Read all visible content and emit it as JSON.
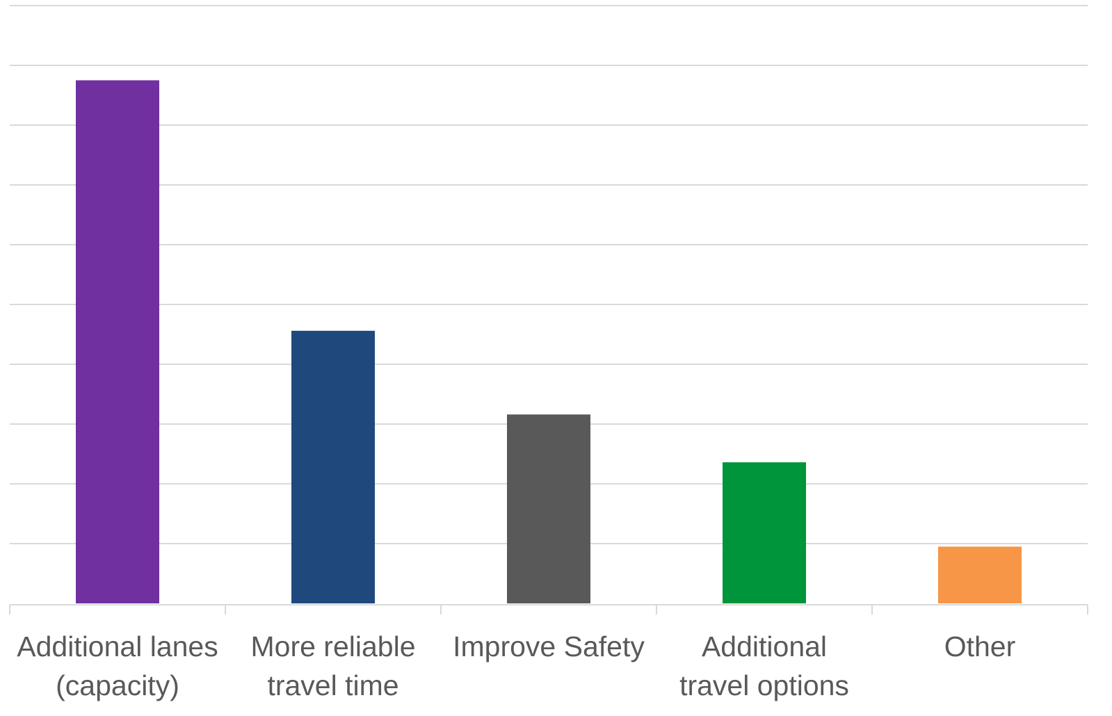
{
  "chart_data": {
    "type": "bar",
    "categories": [
      [
        "Additional lanes",
        "(capacity)"
      ],
      [
        "More reliable",
        "travel time"
      ],
      [
        "Improve Safety"
      ],
      [
        "Additional",
        "travel options"
      ],
      [
        "Other"
      ]
    ],
    "values": [
      87.5,
      45.6,
      31.6,
      23.6,
      9.5
    ],
    "colors": [
      "#7030a0",
      "#1f497d",
      "#595959",
      "#00953a",
      "#f79646"
    ],
    "ylim": [
      0,
      100
    ],
    "gridline_step": 10,
    "grid": true,
    "title": "",
    "xlabel": "",
    "ylabel": ""
  }
}
